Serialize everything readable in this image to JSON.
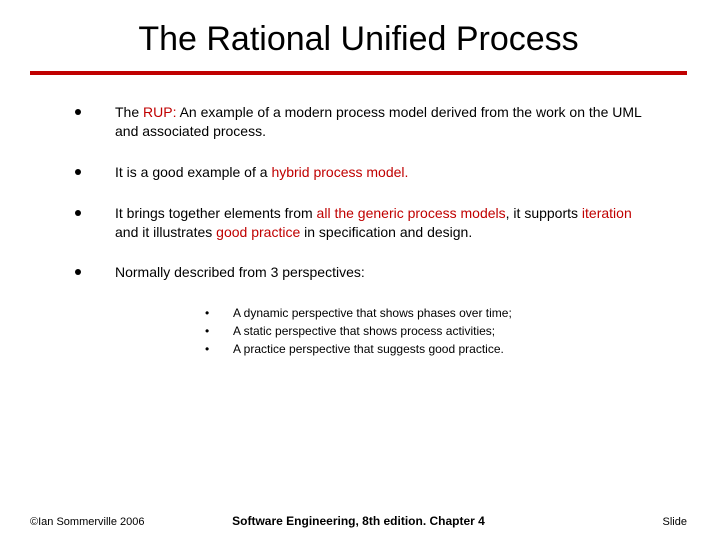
{
  "title": "The Rational Unified Process",
  "bullets": [
    {
      "pre": "The ",
      "red": "RUP:",
      "post": " An example of a modern process model derived from the work on the UML and associated process."
    },
    {
      "pre": "It is a good example of a ",
      "red": "hybrid process model.",
      "post": ""
    },
    {
      "pre": "It brings together elements from ",
      "red1": "all the generic process models",
      "mid1": ", it supports ",
      "red2": "iteration",
      "mid2": " and it illustrates ",
      "red3": "good practice",
      "post": " in specification and design."
    },
    {
      "pre": "Normally described from 3 perspectives:",
      "red": "",
      "post": ""
    }
  ],
  "subs": [
    "A dynamic perspective that shows phases over time;",
    "A static perspective that shows process activities;",
    "A practice perspective that suggests good practice."
  ],
  "footer": {
    "left": "©Ian Sommerville 2006",
    "center": "Software Engineering, 8th edition. Chapter 4",
    "right": "Slide"
  },
  "colors": {
    "accent": "#c00000",
    "text": "#000000",
    "background": "#ffffff"
  }
}
